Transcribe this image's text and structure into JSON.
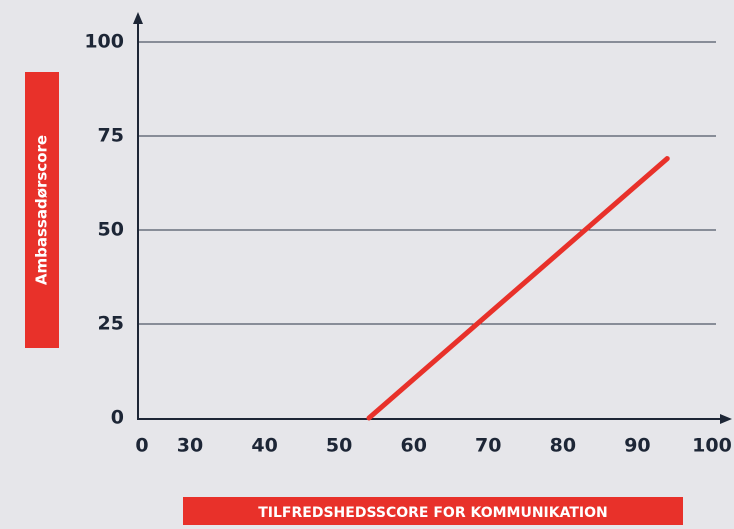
{
  "chart_data": {
    "type": "line",
    "x_label": "TILFREDSHEDSSCORE FOR KOMMUNIKATION",
    "y_label": "Ambassadørscore",
    "series": [
      {
        "name": "Ambassadørscore",
        "color": "#e8312a",
        "x": [
          54,
          94
        ],
        "values": [
          0,
          69
        ]
      }
    ],
    "xlim": [
      0,
      100
    ],
    "xticks": [
      0,
      30,
      40,
      50,
      60,
      70,
      80,
      90,
      100
    ],
    "ylim": [
      0,
      100
    ],
    "yticks": [
      0,
      25,
      50,
      75,
      100
    ],
    "grid": true
  }
}
